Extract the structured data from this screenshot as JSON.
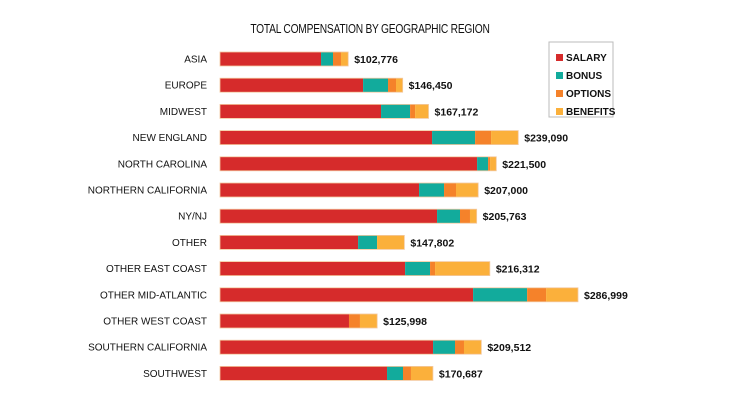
{
  "chart_data": {
    "type": "bar",
    "orientation": "horizontal",
    "stacked": true,
    "title": "TOTAL COMPENSATION BY GEOGRAPHIC REGION",
    "xlabel": "",
    "ylabel": "",
    "xlim": [
      0,
      300000
    ],
    "grid": false,
    "legend_position": "top-right",
    "categories": [
      "ASIA",
      "EUROPE",
      "MIDWEST",
      "NEW ENGLAND",
      "NORTH CAROLINA",
      "NORTHERN CALIFORNIA",
      "NY/NJ",
      "OTHER",
      "OTHER EAST COAST",
      "OTHER MID-ATLANTIC",
      "OTHER WEST COAST",
      "SOUTHERN CALIFORNIA",
      "SOUTHWEST"
    ],
    "series": [
      {
        "name": "SALARY",
        "color": "#d62b2b",
        "values": [
          81000,
          114700,
          129100,
          170000,
          206100,
          159600,
          174000,
          110700,
          148400,
          202900,
          103400,
          170800,
          133900
        ]
      },
      {
        "name": "BONUS",
        "color": "#12ab9c",
        "values": [
          9600,
          20000,
          23300,
          34500,
          8800,
          20000,
          18400,
          15200,
          20000,
          43300,
          0,
          17600,
          12800
        ]
      },
      {
        "name": "OPTIONS",
        "color": "#f5822a",
        "values": [
          6400,
          6400,
          4000,
          12800,
          1600,
          9600,
          8000,
          0,
          4000,
          15200,
          8800,
          7200,
          6400
        ]
      },
      {
        "name": "BENEFITS",
        "color": "#fbb03b",
        "values": [
          5776,
          5350,
          10772,
          21790,
          5000,
          17800,
          5363,
          21902,
          43912,
          25599,
          13798,
          13912,
          17587
        ]
      }
    ],
    "totals": [
      102776,
      146450,
      167172,
      239090,
      221500,
      207000,
      205763,
      147802,
      216312,
      286999,
      125998,
      209512,
      170687
    ],
    "total_labels": [
      "$102,776",
      "$146,450",
      "$167,172",
      "$239,090",
      "$221,500",
      "$207,000",
      "$205,763",
      "$147,802",
      "$216,312",
      "$286,999",
      "$125,998",
      "$209,512",
      "$170,687"
    ]
  }
}
